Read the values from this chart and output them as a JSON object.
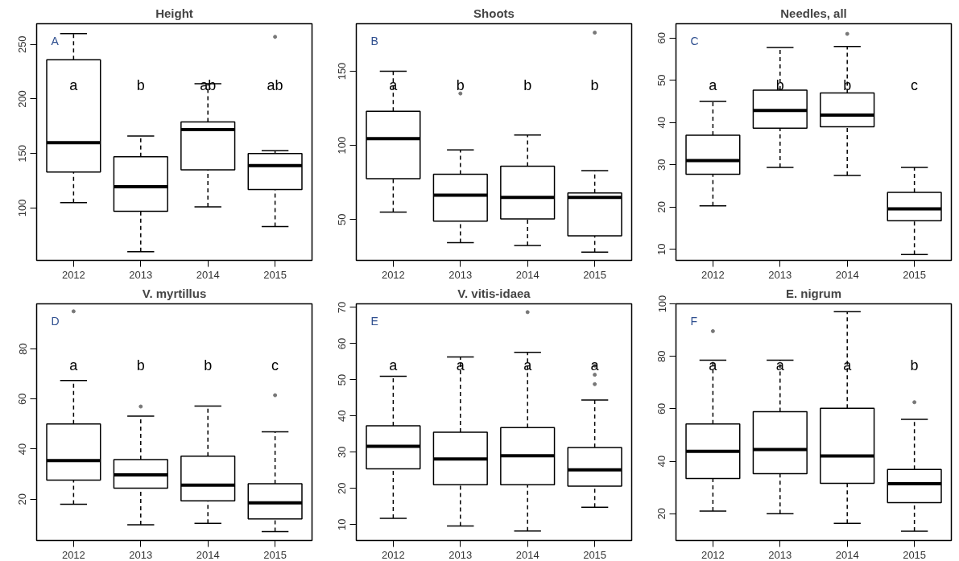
{
  "chart_data": [
    {
      "type": "box",
      "title": "Height",
      "categories": [
        "2012",
        "2013",
        "2014",
        "2015"
      ],
      "ylim": [
        52,
        269
      ],
      "yticks": [
        100,
        150,
        200,
        250
      ],
      "boxes": [
        {
          "low": 105,
          "q1": 133,
          "median": 160,
          "q3": 236,
          "high": 260
        },
        {
          "low": 60,
          "q1": 97,
          "median": 119.5,
          "q3": 147,
          "high": 166
        },
        {
          "low": 101,
          "q1": 135,
          "median": 172,
          "q3": 179,
          "high": 214
        },
        {
          "low": 83,
          "q1": 117,
          "median": 139,
          "q3": 150,
          "high": 152.5,
          "outliers": [
            257
          ]
        }
      ],
      "annotations": [
        "A",
        "a",
        "b",
        "ab",
        "ab"
      ]
    },
    {
      "type": "box",
      "title": "Shoots",
      "categories": [
        "2012",
        "2013",
        "2014",
        "2015"
      ],
      "ylim": [
        22.5,
        182
      ],
      "yticks": [
        50,
        100,
        150
      ],
      "boxes": [
        {
          "low": 55,
          "q1": 77.5,
          "median": 104.5,
          "q3": 123,
          "high": 150
        },
        {
          "low": 34.5,
          "q1": 49,
          "median": 66.5,
          "q3": 80.5,
          "high": 97,
          "outliers": [
            135
          ]
        },
        {
          "low": 32.5,
          "q1": 50.5,
          "median": 65,
          "q3": 86,
          "high": 107
        },
        {
          "low": 28,
          "q1": 39,
          "median": 65,
          "q3": 68,
          "high": 83,
          "outliers": [
            176
          ]
        }
      ],
      "annotations": [
        "B",
        "a",
        "b",
        "b",
        "b"
      ]
    },
    {
      "type": "box",
      "title": "Needles, all",
      "categories": [
        "2012",
        "2013",
        "2014",
        "2015"
      ],
      "ylim": [
        7.4,
        63.4
      ],
      "yticks": [
        10,
        20,
        30,
        40,
        50,
        60
      ],
      "boxes": [
        {
          "low": 20.3,
          "q1": 27.8,
          "median": 31,
          "q3": 37,
          "high": 45
        },
        {
          "low": 29.4,
          "q1": 38.7,
          "median": 42.9,
          "q3": 47.7,
          "high": 57.8
        },
        {
          "low": 27.5,
          "q1": 39,
          "median": 41.8,
          "q3": 47,
          "high": 58,
          "outliers": [
            61
          ]
        },
        {
          "low": 8.8,
          "q1": 16.8,
          "median": 19.6,
          "q3": 23.5,
          "high": 29.4
        }
      ],
      "annotations": [
        "C",
        "a",
        "b",
        "b",
        "c"
      ]
    },
    {
      "type": "box",
      "title": "V. myrtillus",
      "categories": [
        "2012",
        "2013",
        "2014",
        "2015"
      ],
      "ylim": [
        3.5,
        98
      ],
      "yticks": [
        20,
        40,
        60,
        80
      ],
      "boxes": [
        {
          "low": 18,
          "q1": 27.6,
          "median": 35.4,
          "q3": 50,
          "high": 67.4,
          "outliers": [
            95
          ]
        },
        {
          "low": 9.8,
          "q1": 24.4,
          "median": 29.7,
          "q3": 35.8,
          "high": 53.2,
          "outliers": [
            57
          ]
        },
        {
          "low": 10.3,
          "q1": 19.3,
          "median": 25.6,
          "q3": 37.2,
          "high": 57.2
        },
        {
          "low": 7,
          "q1": 12.1,
          "median": 18.5,
          "q3": 26.2,
          "high": 46.9,
          "outliers": [
            61.5
          ]
        }
      ],
      "annotations": [
        "D",
        "a",
        "b",
        "b",
        "c"
      ]
    },
    {
      "type": "box",
      "title": "V. vitis-idaea",
      "categories": [
        "2012",
        "2013",
        "2014",
        "2015"
      ],
      "ylim": [
        5.6,
        71
      ],
      "yticks": [
        10,
        20,
        30,
        40,
        50,
        60,
        70
      ],
      "boxes": [
        {
          "low": 11.7,
          "q1": 25.4,
          "median": 31.6,
          "q3": 37.3,
          "high": 51
        },
        {
          "low": 9.6,
          "q1": 21,
          "median": 28.1,
          "q3": 35.5,
          "high": 56.3
        },
        {
          "low": 8.2,
          "q1": 21,
          "median": 29,
          "q3": 36.8,
          "high": 57.6,
          "outliers": [
            68.7
          ]
        },
        {
          "low": 14.8,
          "q1": 20.6,
          "median": 25.1,
          "q3": 31.3,
          "high": 44.4,
          "outliers": [
            53.9,
            51.4,
            48.8
          ]
        }
      ],
      "annotations": [
        "E",
        "a",
        "a",
        "a",
        "a"
      ]
    },
    {
      "type": "box",
      "title": "E. nigrum",
      "categories": [
        "2012",
        "2013",
        "2014",
        "2015"
      ],
      "ylim": [
        9.8,
        100
      ],
      "yticks": [
        20,
        40,
        60,
        80,
        100
      ],
      "boxes": [
        {
          "low": 21,
          "q1": 33.4,
          "median": 43.8,
          "q3": 54.2,
          "high": 78.5,
          "outliers": [
            89.6
          ]
        },
        {
          "low": 20,
          "q1": 35.3,
          "median": 44.5,
          "q3": 58.9,
          "high": 78.5
        },
        {
          "low": 16.3,
          "q1": 31.6,
          "median": 42,
          "q3": 60.2,
          "high": 97
        },
        {
          "low": 13.3,
          "q1": 24.2,
          "median": 31.4,
          "q3": 36.9,
          "high": 56,
          "outliers": [
            62.5
          ]
        }
      ],
      "annotations": [
        "F",
        "a",
        "a",
        "a",
        "b"
      ]
    }
  ]
}
